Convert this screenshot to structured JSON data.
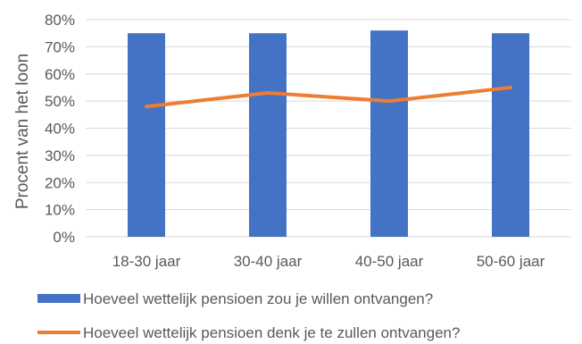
{
  "chart_data": {
    "type": "bar",
    "categories": [
      "18-30 jaar",
      "30-40 jaar",
      "40-50 jaar",
      "50-60 jaar"
    ],
    "series": [
      {
        "name": "Hoeveel wettelijk pensioen zou je willen ontvangen?",
        "type": "bar",
        "color": "#4472C4",
        "values": [
          75,
          75,
          76,
          75
        ]
      },
      {
        "name": "Hoeveel wettelijk pensioen denk je te zullen ontvangen?",
        "type": "line",
        "color": "#ED7D31",
        "values": [
          48,
          53,
          50,
          55
        ]
      }
    ],
    "ylabel": "Procent van het loon",
    "xlabel": "",
    "ylim": [
      0,
      80
    ],
    "yticks": [
      "0%",
      "10%",
      "20%",
      "30%",
      "40%",
      "50%",
      "60%",
      "70%",
      "80%"
    ],
    "grid": true,
    "legend_position": "bottom-left"
  }
}
